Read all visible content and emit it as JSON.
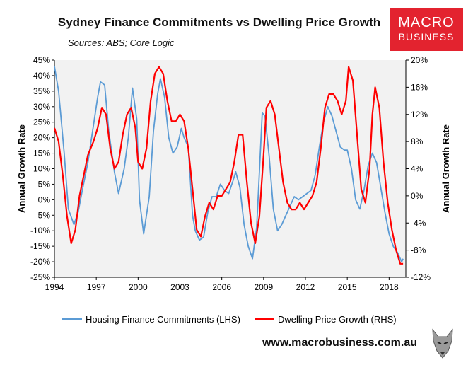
{
  "header": {
    "title": "Sydney Finance Commitments vs Dwelling Price Growth",
    "sources": "Sources: ABS; Core Logic",
    "logo_line1": "MACRO",
    "logo_line2": "BUSINESS"
  },
  "footer": {
    "url": "www.macrobusiness.com.au"
  },
  "colors": {
    "lhs_series": "#5b9bd5",
    "rhs_series": "#ff0000",
    "logo_bg": "#e3232f",
    "plot_bg": "#f2f2f2"
  },
  "chart_data": {
    "type": "line",
    "title": "Sydney Finance Commitments vs Dwelling Price Growth",
    "ylabel_left": "Annual Growth Rate",
    "ylabel_right": "Annual Growth Rate",
    "ylim_left": [
      -25,
      45
    ],
    "ylim_right": [
      -12,
      20
    ],
    "xlim": [
      1994,
      2019.2
    ],
    "left_ticks": [
      "45%",
      "40%",
      "35%",
      "30%",
      "25%",
      "20%",
      "15%",
      "10%",
      "5%",
      "0%",
      "-5%",
      "-10%",
      "-15%",
      "-20%",
      "-25%"
    ],
    "right_ticks": [
      "20%",
      "16%",
      "12%",
      "8%",
      "4%",
      "0%",
      "-4%",
      "-8%",
      "-12%"
    ],
    "x_ticks": [
      "1994",
      "1997",
      "2000",
      "2003",
      "2006",
      "2009",
      "2012",
      "2015",
      "2018"
    ],
    "legend_position": "bottom",
    "series": [
      {
        "name": "Housing Finance Commitments (LHS)",
        "axis": "left",
        "x": [
          1994.0,
          1994.3,
          1994.7,
          1995.0,
          1995.4,
          1995.7,
          1996.0,
          1996.4,
          1996.8,
          1997.1,
          1997.3,
          1997.6,
          1997.9,
          1998.3,
          1998.6,
          1999.0,
          1999.3,
          1999.6,
          1999.9,
          2000.1,
          2000.4,
          2000.8,
          2001.1,
          2001.4,
          2001.6,
          2001.9,
          2002.2,
          2002.5,
          2002.8,
          2003.1,
          2003.3,
          2003.6,
          2003.9,
          2004.1,
          2004.4,
          2004.7,
          2005.0,
          2005.3,
          2005.6,
          2005.9,
          2006.2,
          2006.5,
          2006.8,
          2007.0,
          2007.3,
          2007.6,
          2007.9,
          2008.2,
          2008.5,
          2008.7,
          2008.9,
          2009.1,
          2009.4,
          2009.7,
          2010.0,
          2010.3,
          2010.6,
          2010.9,
          2011.2,
          2011.5,
          2011.8,
          2012.1,
          2012.4,
          2012.7,
          2013.0,
          2013.3,
          2013.6,
          2013.9,
          2014.2,
          2014.5,
          2014.8,
          2015.0,
          2015.3,
          2015.6,
          2015.9,
          2016.2,
          2016.5,
          2016.8,
          2017.1,
          2017.4,
          2017.7,
          2018.0,
          2018.3,
          2018.6,
          2018.9,
          2019.0
        ],
        "values": [
          43,
          35,
          15,
          -3,
          -8,
          -4,
          3,
          12,
          24,
          33,
          38,
          37,
          22,
          9,
          2,
          10,
          20,
          36,
          26,
          0,
          -11,
          1,
          22,
          34,
          39,
          33,
          20,
          15,
          17,
          23,
          20,
          17,
          -5,
          -10,
          -13,
          -12,
          -4,
          1,
          1,
          5,
          3,
          2,
          6,
          9,
          4,
          -8,
          -15,
          -19,
          -9,
          9,
          28,
          27,
          14,
          -3,
          -10,
          -8,
          -5,
          -2,
          1,
          0,
          1,
          2,
          3,
          8,
          17,
          25,
          30,
          27,
          22,
          17,
          16,
          16,
          10,
          0,
          -3,
          3,
          11,
          15,
          12,
          4,
          -4,
          -11,
          -15,
          -17,
          -20,
          -19
        ]
      },
      {
        "name": "Dwelling Price Growth (RHS)",
        "axis": "right",
        "x": [
          1994.0,
          1994.3,
          1994.6,
          1994.9,
          1995.2,
          1995.5,
          1995.8,
          1996.1,
          1996.4,
          1996.8,
          1997.1,
          1997.4,
          1997.7,
          1998.0,
          1998.3,
          1998.6,
          1998.9,
          1999.2,
          1999.5,
          1999.8,
          2000.0,
          2000.3,
          2000.6,
          2000.9,
          2001.2,
          2001.5,
          2001.8,
          2002.1,
          2002.4,
          2002.7,
          2003.0,
          2003.3,
          2003.6,
          2003.9,
          2004.2,
          2004.5,
          2004.8,
          2005.1,
          2005.4,
          2005.7,
          2006.0,
          2006.3,
          2006.6,
          2006.9,
          2007.2,
          2007.5,
          2007.8,
          2008.1,
          2008.4,
          2008.7,
          2009.0,
          2009.2,
          2009.5,
          2009.8,
          2010.1,
          2010.4,
          2010.7,
          2011.0,
          2011.3,
          2011.6,
          2011.9,
          2012.2,
          2012.5,
          2012.8,
          2013.1,
          2013.4,
          2013.7,
          2014.0,
          2014.3,
          2014.6,
          2014.9,
          2015.1,
          2015.4,
          2015.7,
          2016.0,
          2016.3,
          2016.6,
          2016.8,
          2017.0,
          2017.3,
          2017.6,
          2017.9,
          2018.2,
          2018.5,
          2018.8,
          2019.0
        ],
        "values": [
          10,
          8,
          3,
          -3,
          -7,
          -5,
          0,
          3,
          6,
          8,
          10,
          13,
          12,
          7,
          4,
          5,
          9,
          12,
          13,
          10,
          5,
          4,
          7,
          14,
          18,
          19,
          18,
          14,
          11,
          11,
          12,
          11,
          7,
          1,
          -5,
          -6,
          -3,
          -1,
          -2,
          0,
          0,
          1,
          2,
          5,
          9,
          9,
          2,
          -4,
          -7,
          -3,
          6,
          13,
          14,
          12,
          7,
          2,
          -1,
          -2,
          -2,
          -1,
          -2,
          -1,
          0,
          2,
          7,
          13,
          15,
          15,
          14,
          12,
          14,
          19,
          17,
          9,
          1,
          -1,
          4,
          12,
          16,
          13,
          5,
          -1,
          -5,
          -8,
          -10,
          -10
        ]
      }
    ]
  }
}
